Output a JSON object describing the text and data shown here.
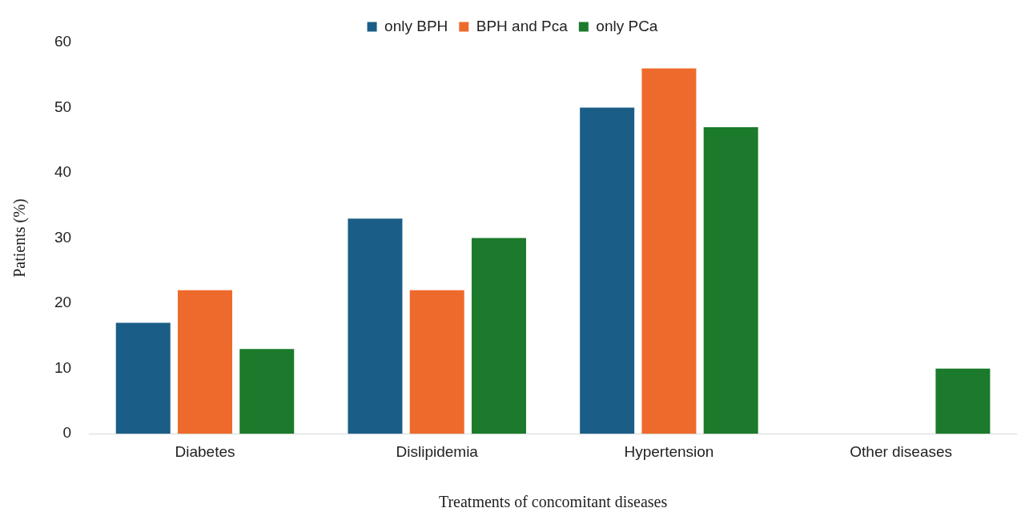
{
  "chart_data": {
    "type": "bar",
    "xlabel": "Treatments of concomitant diseases",
    "ylabel": "Patients (%)",
    "categories": [
      "Diabetes",
      "Dislipidemia",
      "Hypertension",
      "Other diseases"
    ],
    "series": [
      {
        "name": "only BPH",
        "color": "#1a5e87",
        "values": [
          17,
          33,
          50,
          0
        ]
      },
      {
        "name": "BPH and Pca",
        "color": "#ee6a2c",
        "values": [
          22,
          22,
          56,
          0
        ]
      },
      {
        "name": "only PCa",
        "color": "#1b7a2b",
        "values": [
          13,
          30,
          47,
          10
        ]
      }
    ],
    "ylim": [
      0,
      60
    ],
    "yticks": [
      0,
      10,
      20,
      30,
      40,
      50,
      60
    ],
    "grid": false,
    "legend": "top"
  }
}
